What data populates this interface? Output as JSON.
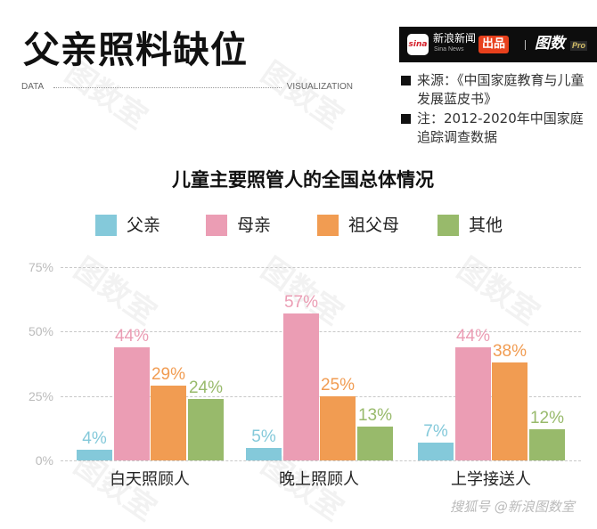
{
  "header": {
    "title": "父亲照料缺位",
    "subline_left": "DATA",
    "subline_right": "VISUALIZATION"
  },
  "banner": {
    "logo_text": "sina",
    "brand_cn": "新浪新闻",
    "brand_en": "Sina News",
    "badge": "出品",
    "product": "图数",
    "product_suffix": "Pro"
  },
  "notes": [
    {
      "text": "来源：《中国家庭教育与儿童发展蓝皮书》"
    },
    {
      "text": "注：2012-2020年中国家庭追踪调查数据"
    }
  ],
  "colors": {
    "father": "#84c9da",
    "mother": "#eb9db4",
    "grandparents": "#f19c52",
    "other": "#98ba6b"
  },
  "footer": {
    "text": "搜狐号 @新浪图数室"
  },
  "watermark": "图数室",
  "chart_data": {
    "type": "bar",
    "title": "儿童主要照管人的全国总体情况",
    "xlabel": "",
    "ylabel": "",
    "ylim": [
      0,
      75
    ],
    "yticks": [
      "0%",
      "25%",
      "50%",
      "75%"
    ],
    "grid": true,
    "legend_position": "top",
    "categories": [
      "白天照顾人",
      "晚上照顾人",
      "上学接送人"
    ],
    "series": [
      {
        "name": "父亲",
        "color": "#84c9da",
        "values": [
          4,
          5,
          7
        ],
        "labels": [
          "4%",
          "5%",
          "7%"
        ]
      },
      {
        "name": "母亲",
        "color": "#eb9db4",
        "values": [
          44,
          57,
          44
        ],
        "labels": [
          "44%",
          "57%",
          "44%"
        ]
      },
      {
        "name": "祖父母",
        "color": "#f19c52",
        "values": [
          29,
          25,
          38
        ],
        "labels": [
          "29%",
          "25%",
          "38%"
        ]
      },
      {
        "name": "其他",
        "color": "#98ba6b",
        "values": [
          24,
          13,
          12
        ],
        "labels": [
          "24%",
          "13%",
          "12%"
        ]
      }
    ]
  }
}
